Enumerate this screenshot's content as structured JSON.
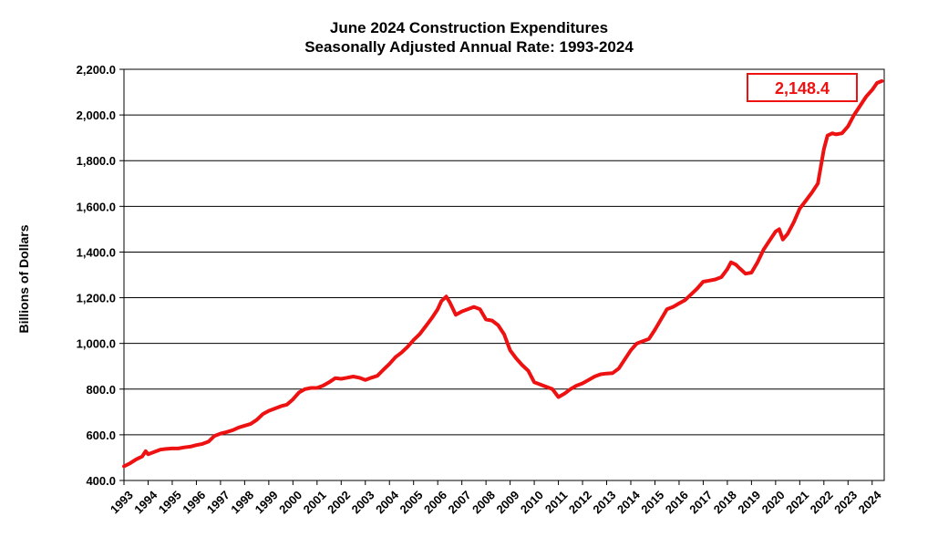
{
  "chart_data": {
    "type": "line",
    "title": "June 2024 Construction Expenditures",
    "subtitle": "Seasonally Adjusted Annual Rate: 1993-2024",
    "xlabel": "",
    "ylabel": "Billions of Dollars",
    "ylim": [
      400,
      2200
    ],
    "xlim": [
      1993.0,
      2024.5
    ],
    "yticks": [
      "400.0",
      "600.0",
      "800.0",
      "1,000.0",
      "1,200.0",
      "1,400.0",
      "1,600.0",
      "1,800.0",
      "2,000.0",
      "2,200.0"
    ],
    "xticks": [
      "1993",
      "1994",
      "1995",
      "1996",
      "1997",
      "1998",
      "1999",
      "2000",
      "2001",
      "2002",
      "2003",
      "2004",
      "2005",
      "2006",
      "2007",
      "2008",
      "2009",
      "2010",
      "2011",
      "2012",
      "2013",
      "2014",
      "2015",
      "2016",
      "2017",
      "2018",
      "2019",
      "2020",
      "2021",
      "2022",
      "2023",
      "2024"
    ],
    "grid": "horizontal",
    "line_color": "#ee1111",
    "annotation": {
      "text": "2,148.4",
      "color": "#ee1111"
    },
    "series": [
      {
        "x": [
          1993.0,
          1993.25,
          1993.5,
          1993.75,
          1993.9,
          1994.0,
          1994.25,
          1994.5,
          1994.75,
          1995.0,
          1995.25,
          1995.5,
          1995.75,
          1996.0,
          1996.25,
          1996.5,
          1996.75,
          1997.0,
          1997.25,
          1997.5,
          1997.75,
          1998.0,
          1998.25,
          1998.5,
          1998.75,
          1999.0,
          1999.25,
          1999.5,
          1999.75,
          2000.0,
          2000.25,
          2000.5,
          2000.75,
          2001.0,
          2001.25,
          2001.5,
          2001.75,
          2002.0,
          2002.25,
          2002.5,
          2002.75,
          2003.0,
          2003.25,
          2003.5,
          2003.75,
          2004.0,
          2004.25,
          2004.5,
          2004.75,
          2005.0,
          2005.25,
          2005.5,
          2005.75,
          2006.0,
          2006.15,
          2006.35,
          2006.5,
          2006.75,
          2007.0,
          2007.25,
          2007.5,
          2007.75,
          2008.0,
          2008.25,
          2008.5,
          2008.75,
          2009.0,
          2009.25,
          2009.5,
          2009.75,
          2010.0,
          2010.25,
          2010.5,
          2010.75,
          2011.0,
          2011.25,
          2011.5,
          2011.75,
          2012.0,
          2012.25,
          2012.5,
          2012.75,
          2013.0,
          2013.25,
          2013.5,
          2013.75,
          2014.0,
          2014.25,
          2014.5,
          2014.75,
          2015.0,
          2015.25,
          2015.5,
          2015.75,
          2016.0,
          2016.25,
          2016.5,
          2016.75,
          2017.0,
          2017.25,
          2017.5,
          2017.75,
          2018.0,
          2018.15,
          2018.35,
          2018.5,
          2018.75,
          2019.0,
          2019.25,
          2019.5,
          2019.75,
          2020.0,
          2020.15,
          2020.3,
          2020.5,
          2020.75,
          2021.0,
          2021.25,
          2021.5,
          2021.75,
          2022.0,
          2022.15,
          2022.35,
          2022.5,
          2022.75,
          2023.0,
          2023.25,
          2023.5,
          2023.75,
          2024.0,
          2024.2,
          2024.4
        ],
        "values": [
          462,
          475,
          492,
          505,
          528,
          515,
          525,
          535,
          538,
          540,
          540,
          545,
          548,
          555,
          560,
          570,
          595,
          605,
          612,
          620,
          632,
          640,
          648,
          665,
          690,
          705,
          715,
          725,
          732,
          755,
          785,
          800,
          805,
          805,
          815,
          830,
          848,
          845,
          850,
          855,
          850,
          840,
          850,
          858,
          885,
          910,
          940,
          960,
          985,
          1015,
          1040,
          1075,
          1110,
          1150,
          1185,
          1205,
          1180,
          1125,
          1140,
          1150,
          1160,
          1150,
          1105,
          1100,
          1080,
          1040,
          970,
          935,
          905,
          880,
          830,
          820,
          810,
          800,
          765,
          780,
          800,
          815,
          825,
          840,
          855,
          865,
          868,
          870,
          890,
          930,
          970,
          1000,
          1010,
          1020,
          1060,
          1105,
          1150,
          1160,
          1175,
          1190,
          1215,
          1240,
          1270,
          1275,
          1280,
          1290,
          1325,
          1355,
          1345,
          1330,
          1305,
          1310,
          1355,
          1410,
          1450,
          1490,
          1500,
          1455,
          1480,
          1530,
          1590,
          1625,
          1660,
          1700,
          1850,
          1910,
          1920,
          1915,
          1920,
          1950,
          2000,
          2040,
          2080,
          2110,
          2140,
          2148.4
        ]
      }
    ]
  }
}
